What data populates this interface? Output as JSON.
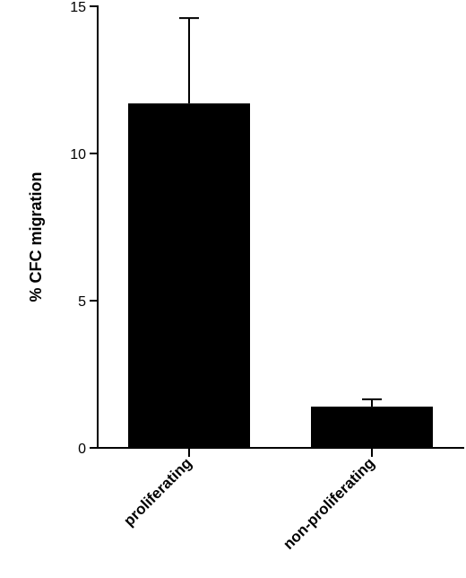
{
  "chart_data": {
    "type": "bar",
    "title": "",
    "xlabel": "",
    "ylabel": "% CFC migration",
    "categories": [
      "proliferating",
      "non-proliferating"
    ],
    "values": [
      11.7,
      1.4
    ],
    "error_upper": [
      14.6,
      1.65
    ],
    "ylim": [
      0,
      15
    ],
    "yticks": [
      0,
      5,
      10,
      15
    ],
    "ytick_labels": [
      "0",
      "5",
      "10",
      "15"
    ],
    "bar_color": "#000000",
    "grid": false,
    "legend": "none"
  }
}
